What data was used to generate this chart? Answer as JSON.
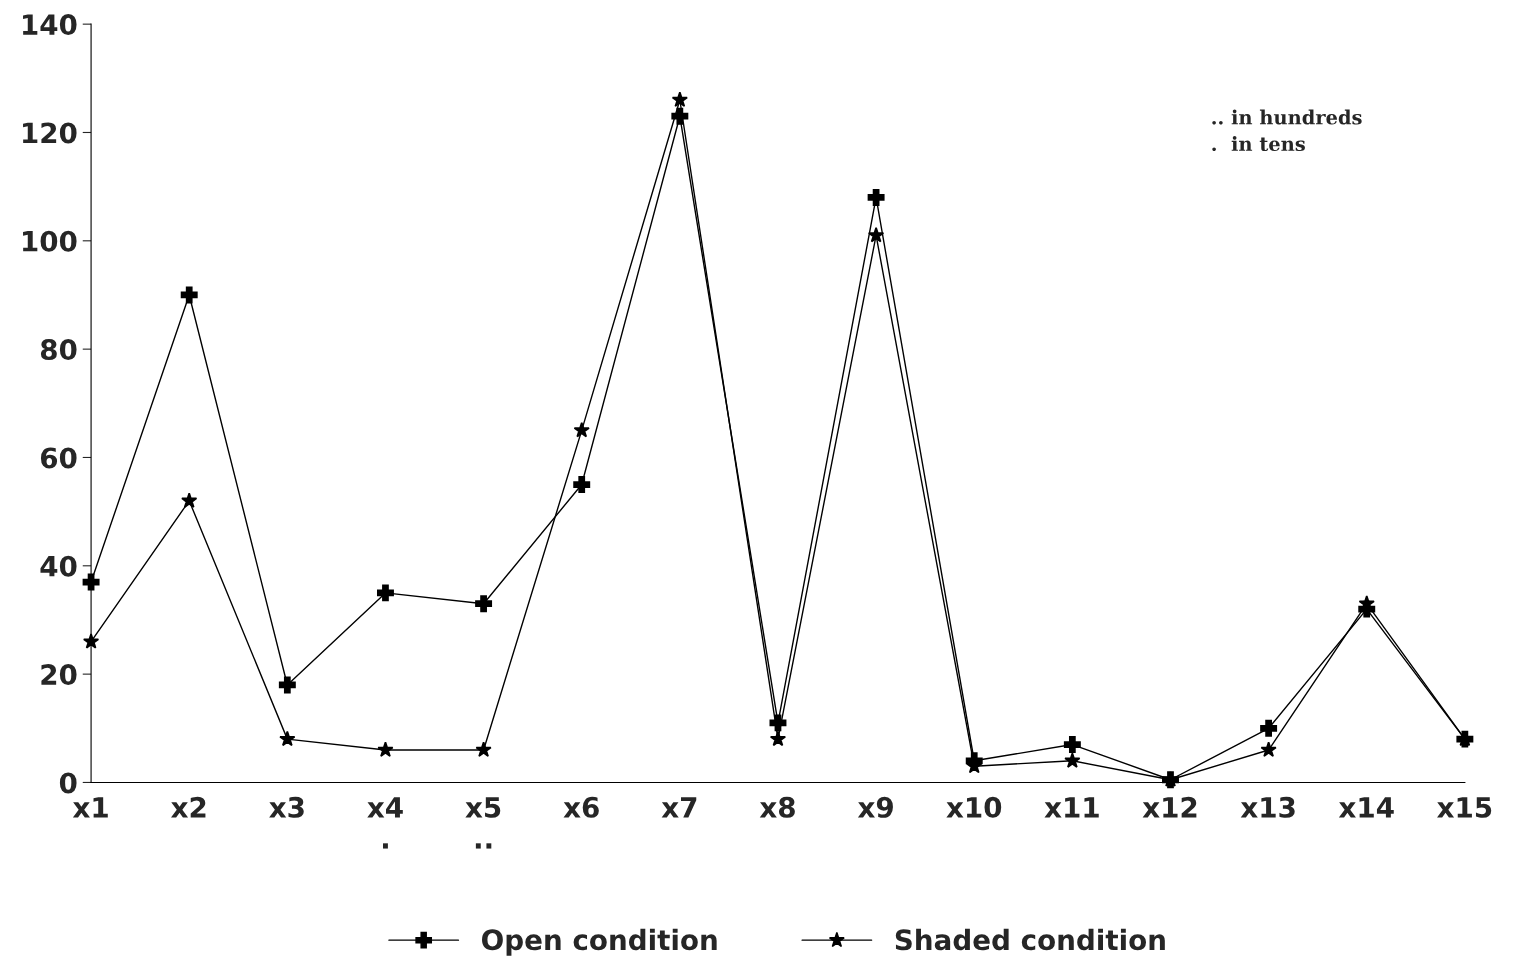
{
  "chart_data": {
    "type": "line",
    "categories": [
      "x1",
      "x2",
      "x3",
      "x4\n.",
      "x5\n..",
      "x6",
      "x7",
      "x8",
      "x9",
      "x10",
      "x11",
      "x12",
      "x13",
      "x14",
      "x15"
    ],
    "series": [
      {
        "name": "Open condition",
        "color": "#000000",
        "marker": "cross",
        "values": [
          37,
          90,
          18,
          35,
          33,
          55,
          123,
          11,
          108,
          4,
          7,
          0.5,
          10,
          32,
          8
        ]
      },
      {
        "name": "Shaded condition",
        "color": "#000000",
        "marker": "star",
        "values": [
          26,
          52,
          8,
          6,
          6,
          65,
          126,
          8,
          101,
          3,
          4,
          0.5,
          6,
          33,
          8
        ]
      }
    ],
    "ylim": [
      0,
      140
    ],
    "yticks": [
      0,
      20,
      40,
      60,
      80,
      100,
      120,
      140
    ],
    "annotations": [
      ".. in hundreds",
      ".  in tens"
    ],
    "grid": false,
    "legend": "bottom",
    "line_style": "solid"
  }
}
